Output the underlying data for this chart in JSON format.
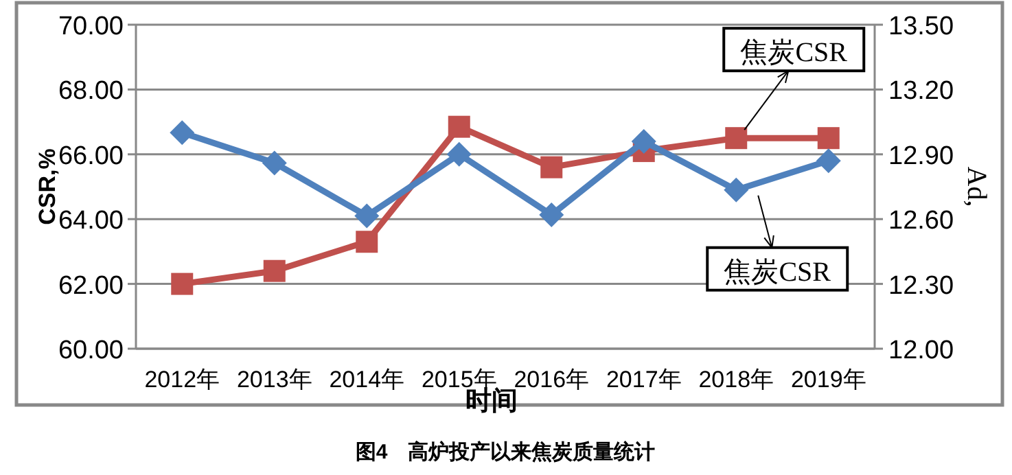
{
  "chart_data": {
    "type": "line",
    "title": "图4　高炉投产以来焦炭质量统计",
    "xlabel": "时间",
    "ylabel": "CSR,%",
    "y2label": "Ad,",
    "categories": [
      "2012年",
      "2013年",
      "2014年",
      "2015年",
      "2016年",
      "2017年",
      "2018年",
      "2019年"
    ],
    "series": [
      {
        "color": "#c0504d",
        "marker": "square",
        "values": [
          62.0,
          62.4,
          63.3,
          66.85,
          65.6,
          66.1,
          66.5,
          66.5
        ]
      },
      {
        "color": "#4f81bd",
        "marker": "diamond",
        "axis": "y2",
        "values": [
          13.0,
          12.86,
          12.615,
          12.9,
          12.62,
          12.96,
          12.735,
          12.87
        ]
      }
    ],
    "ylim": [
      60,
      70
    ],
    "yticks": [
      {
        "value": 60,
        "label": "60.00"
      },
      {
        "value": 62,
        "label": "62.00"
      },
      {
        "value": 64,
        "label": "64.00"
      },
      {
        "value": 66,
        "label": "66.00"
      },
      {
        "value": 68,
        "label": "68.00"
      },
      {
        "value": 70,
        "label": "70.00"
      }
    ],
    "y2lim": [
      12,
      13.5
    ],
    "y2ticks": [
      {
        "value": 12,
        "label": "12.00"
      },
      {
        "value": 12.3,
        "label": "12.30"
      },
      {
        "value": 12.6,
        "label": "12.60"
      },
      {
        "value": 12.9,
        "label": "12.90"
      },
      {
        "value": 13.2,
        "label": "13.20"
      },
      {
        "value": 13.5,
        "label": "13.50"
      }
    ],
    "grid": "y",
    "annotations": [
      {
        "text": "焦炭CSR",
        "x": "2018年",
        "y": 66.5
      },
      {
        "text": "焦炭CSR",
        "x": "2018年",
        "y": 64.9
      }
    ]
  }
}
